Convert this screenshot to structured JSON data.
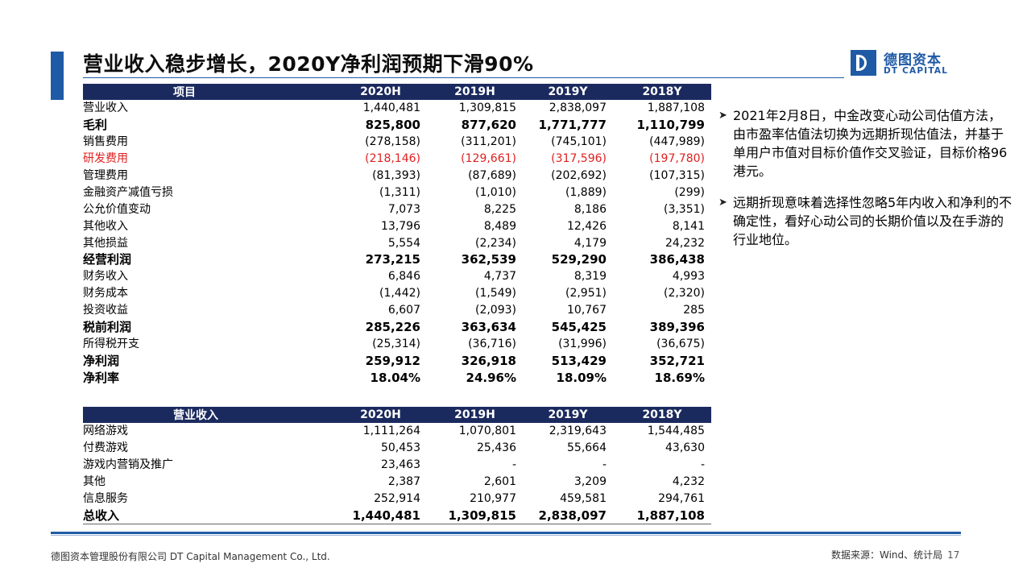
{
  "title": "营业收入稳步增长，2020Y净利润预期下滑90%",
  "logo": {
    "cn": "德图资本",
    "en": "DT CAPITAL",
    "color": "#1f5aa6"
  },
  "income_table": {
    "headers": [
      "项目",
      "2020H",
      "2019H",
      "2019Y",
      "2018Y"
    ],
    "rows": [
      {
        "label": "营业收入",
        "values": [
          "1,440,481",
          "1,309,815",
          "2,838,097",
          "1,887,108"
        ],
        "bold": false,
        "red": false
      },
      {
        "label": "毛利",
        "values": [
          "825,800",
          "877,620",
          "1,771,777",
          "1,110,799"
        ],
        "bold": true,
        "red": false
      },
      {
        "label": "销售费用",
        "values": [
          "(278,158)",
          "(311,201)",
          "(745,101)",
          "(447,989)"
        ],
        "bold": false,
        "red": false
      },
      {
        "label": "研发费用",
        "values": [
          "(218,146)",
          "(129,661)",
          "(317,596)",
          "(197,780)"
        ],
        "bold": false,
        "red": true
      },
      {
        "label": "管理费用",
        "values": [
          "(81,393)",
          "(87,689)",
          "(202,692)",
          "(107,315)"
        ],
        "bold": false,
        "red": false
      },
      {
        "label": "金融资产减值亏损",
        "values": [
          "(1,311)",
          "(1,010)",
          "(1,889)",
          "(299)"
        ],
        "bold": false,
        "red": false
      },
      {
        "label": "公允价值变动",
        "values": [
          "7,073",
          "8,225",
          "8,186",
          "(3,351)"
        ],
        "bold": false,
        "red": false
      },
      {
        "label": "其他收入",
        "values": [
          "13,796",
          "8,489",
          "12,426",
          "8,141"
        ],
        "bold": false,
        "red": false
      },
      {
        "label": "其他损益",
        "values": [
          "5,554",
          "(2,234)",
          "4,179",
          "24,232"
        ],
        "bold": false,
        "red": false
      },
      {
        "label": "经营利润",
        "values": [
          "273,215",
          "362,539",
          "529,290",
          "386,438"
        ],
        "bold": true,
        "red": false
      },
      {
        "label": "财务收入",
        "values": [
          "6,846",
          "4,737",
          "8,319",
          "4,993"
        ],
        "bold": false,
        "red": false
      },
      {
        "label": "财务成本",
        "values": [
          "(1,442)",
          "(1,549)",
          "(2,951)",
          "(2,320)"
        ],
        "bold": false,
        "red": false
      },
      {
        "label": "投资收益",
        "values": [
          "6,607",
          "(2,093)",
          "10,767",
          "285"
        ],
        "bold": false,
        "red": false
      },
      {
        "label": "税前利润",
        "values": [
          "285,226",
          "363,634",
          "545,425",
          "389,396"
        ],
        "bold": true,
        "red": false
      },
      {
        "label": "所得税开支",
        "values": [
          "(25,314)",
          "(36,716)",
          "(31,996)",
          "(36,675)"
        ],
        "bold": false,
        "red": false
      },
      {
        "label": "净利润",
        "values": [
          "259,912",
          "326,918",
          "513,429",
          "352,721"
        ],
        "bold": true,
        "red": false
      },
      {
        "label": "净利率",
        "values": [
          "18.04%",
          "24.96%",
          "18.09%",
          "18.69%"
        ],
        "bold": true,
        "red": false
      }
    ]
  },
  "revenue_table": {
    "headers": [
      "营业收入",
      "2020H",
      "2019H",
      "2019Y",
      "2018Y"
    ],
    "rows": [
      {
        "label": "网络游戏",
        "values": [
          "1,111,264",
          "1,070,801",
          "2,319,643",
          "1,544,485"
        ],
        "bold": false,
        "red": false
      },
      {
        "label": "付费游戏",
        "values": [
          "50,453",
          "25,436",
          "55,664",
          "43,630"
        ],
        "bold": false,
        "red": false
      },
      {
        "label": "游戏内营销及推广",
        "values": [
          "23,463",
          "-",
          "-",
          "-"
        ],
        "bold": false,
        "red": false
      },
      {
        "label": "其他",
        "values": [
          "2,387",
          "2,601",
          "3,209",
          "4,232"
        ],
        "bold": false,
        "red": false
      },
      {
        "label": "信息服务",
        "values": [
          "252,914",
          "210,977",
          "459,581",
          "294,761"
        ],
        "bold": false,
        "red": false
      },
      {
        "label": "总收入",
        "values": [
          "1,440,481",
          "1,309,815",
          "2,838,097",
          "1,887,108"
        ],
        "bold": true,
        "red": false
      }
    ]
  },
  "notes": [
    "2021年2月8日，中金改变心动公司估值方法，由市盈率估值法切换为远期折现估值法，并基于单用户市值对目标价值作交叉验证，目标价格96港元。",
    "远期折现意味着选择性忽略5年内收入和净利的不确定性，看好心动公司的长期价值以及在手游的行业地位。"
  ],
  "footer": {
    "company": "德图资本管理股份有限公司  DT Capital Management  Co., Ltd.",
    "source": "数据来源：Wind、统计局",
    "page": "17"
  },
  "colors": {
    "accent": "#1f5aa6",
    "header_bg": "#1b2a5e",
    "highlight_red": "#e02020"
  }
}
